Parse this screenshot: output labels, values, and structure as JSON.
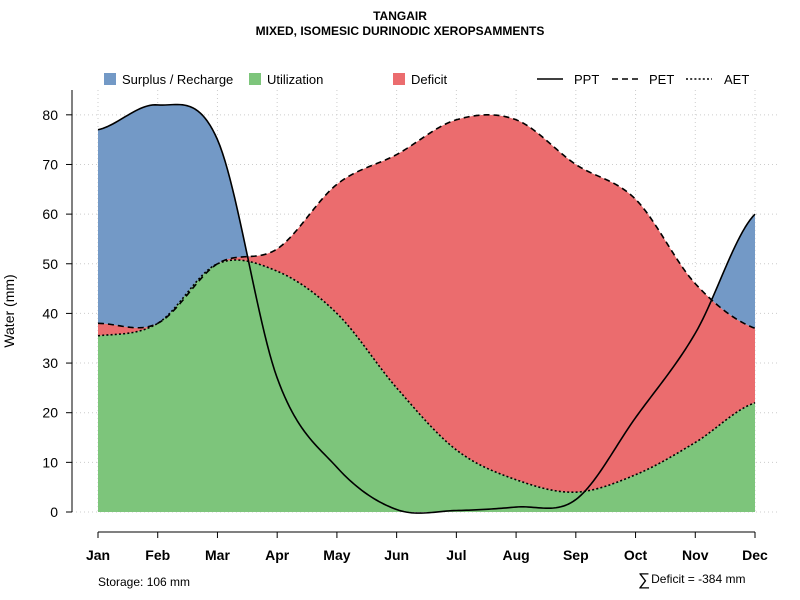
{
  "title": "TANGAIR",
  "subtitle": "MIXED, ISOMESIC DURINODIC XEROPSAMMENTS",
  "colors": {
    "surplus": "#7399C6",
    "utilization": "#7DC57B",
    "deficit": "#EB6C6E",
    "grid": "#cccccc"
  },
  "chart_data": {
    "type": "area",
    "categories": [
      "Jan",
      "Feb",
      "Mar",
      "Apr",
      "May",
      "Jun",
      "Jul",
      "Aug",
      "Sep",
      "Oct",
      "Nov",
      "Dec"
    ],
    "ylabel": "Water (mm)",
    "ylim": [
      0,
      85
    ],
    "yticks": [
      0,
      10,
      20,
      30,
      40,
      50,
      60,
      70,
      80
    ],
    "grid": true,
    "legend_position": "top",
    "legend": [
      {
        "label": "Surplus / Recharge",
        "kind": "fill",
        "key": "surplus"
      },
      {
        "label": "Utilization",
        "kind": "fill",
        "key": "utilization"
      },
      {
        "label": "Deficit",
        "kind": "fill",
        "key": "deficit"
      },
      {
        "label": "PPT",
        "kind": "line",
        "dash": "solid"
      },
      {
        "label": "PET",
        "kind": "line",
        "dash": "dashed"
      },
      {
        "label": "AET",
        "kind": "line",
        "dash": "dotted"
      }
    ],
    "series": [
      {
        "name": "PPT",
        "values": [
          77,
          82,
          75,
          27,
          9,
          0.5,
          0.3,
          1,
          2.5,
          19,
          36,
          60
        ]
      },
      {
        "name": "PET",
        "values": [
          38,
          38,
          50,
          53,
          66,
          72,
          79,
          79,
          70,
          63,
          46,
          37
        ]
      },
      {
        "name": "AET",
        "values": [
          35.5,
          38,
          50,
          48.5,
          40,
          25,
          12.5,
          6.5,
          4,
          7.5,
          14,
          22
        ]
      }
    ]
  },
  "footer": {
    "storage": "Storage: 106 mm",
    "deficit_symbol": "∑",
    "deficit": "Deficit = -384 mm"
  }
}
